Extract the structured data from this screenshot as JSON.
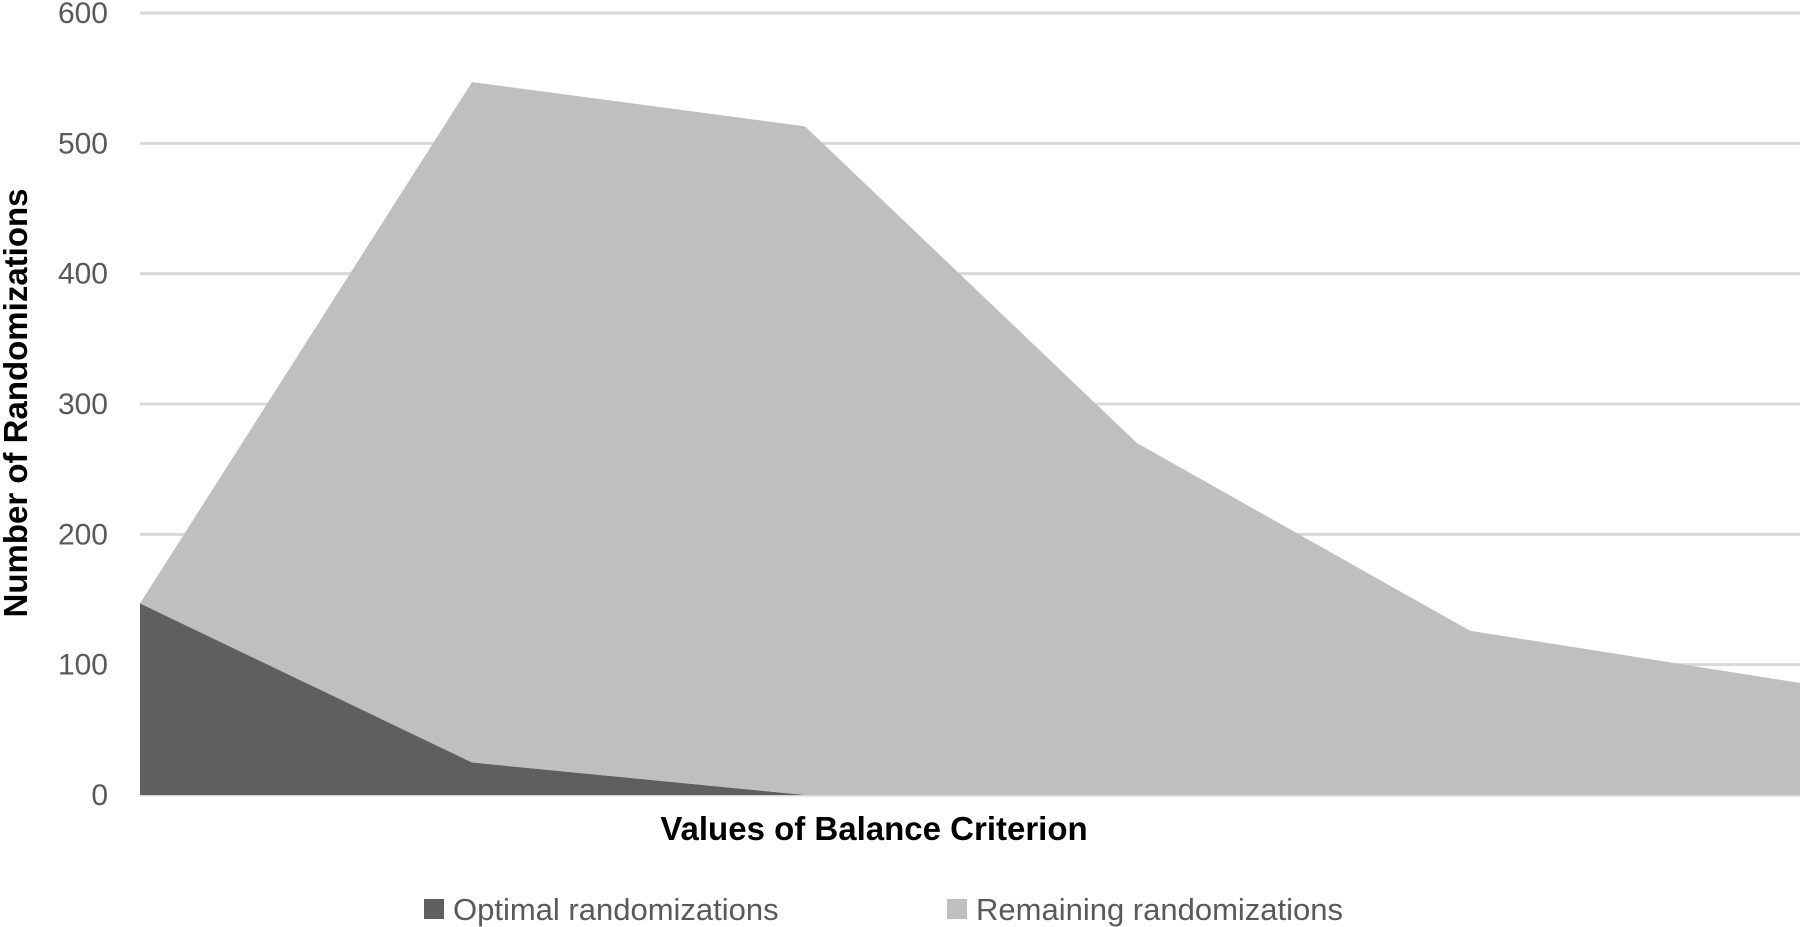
{
  "chart_data": {
    "type": "area",
    "stacked": true,
    "title": "",
    "xlabel": "Values of Balance Criterion",
    "ylabel": "Number of Randomizations",
    "ylim": [
      0,
      600
    ],
    "yticks": [
      0,
      100,
      200,
      300,
      400,
      500,
      600
    ],
    "x": [
      1,
      2,
      3,
      4,
      5,
      6
    ],
    "grid": true,
    "legend_position": "bottom",
    "series": [
      {
        "name": "Optimal randomizations",
        "color": "#5f5f5f",
        "values": [
          147,
          25,
          0,
          0,
          0,
          0
        ]
      },
      {
        "name": "Remaining randomizations",
        "color": "#bfbfbf",
        "values": [
          0,
          522,
          513,
          270,
          126,
          86
        ]
      }
    ]
  }
}
